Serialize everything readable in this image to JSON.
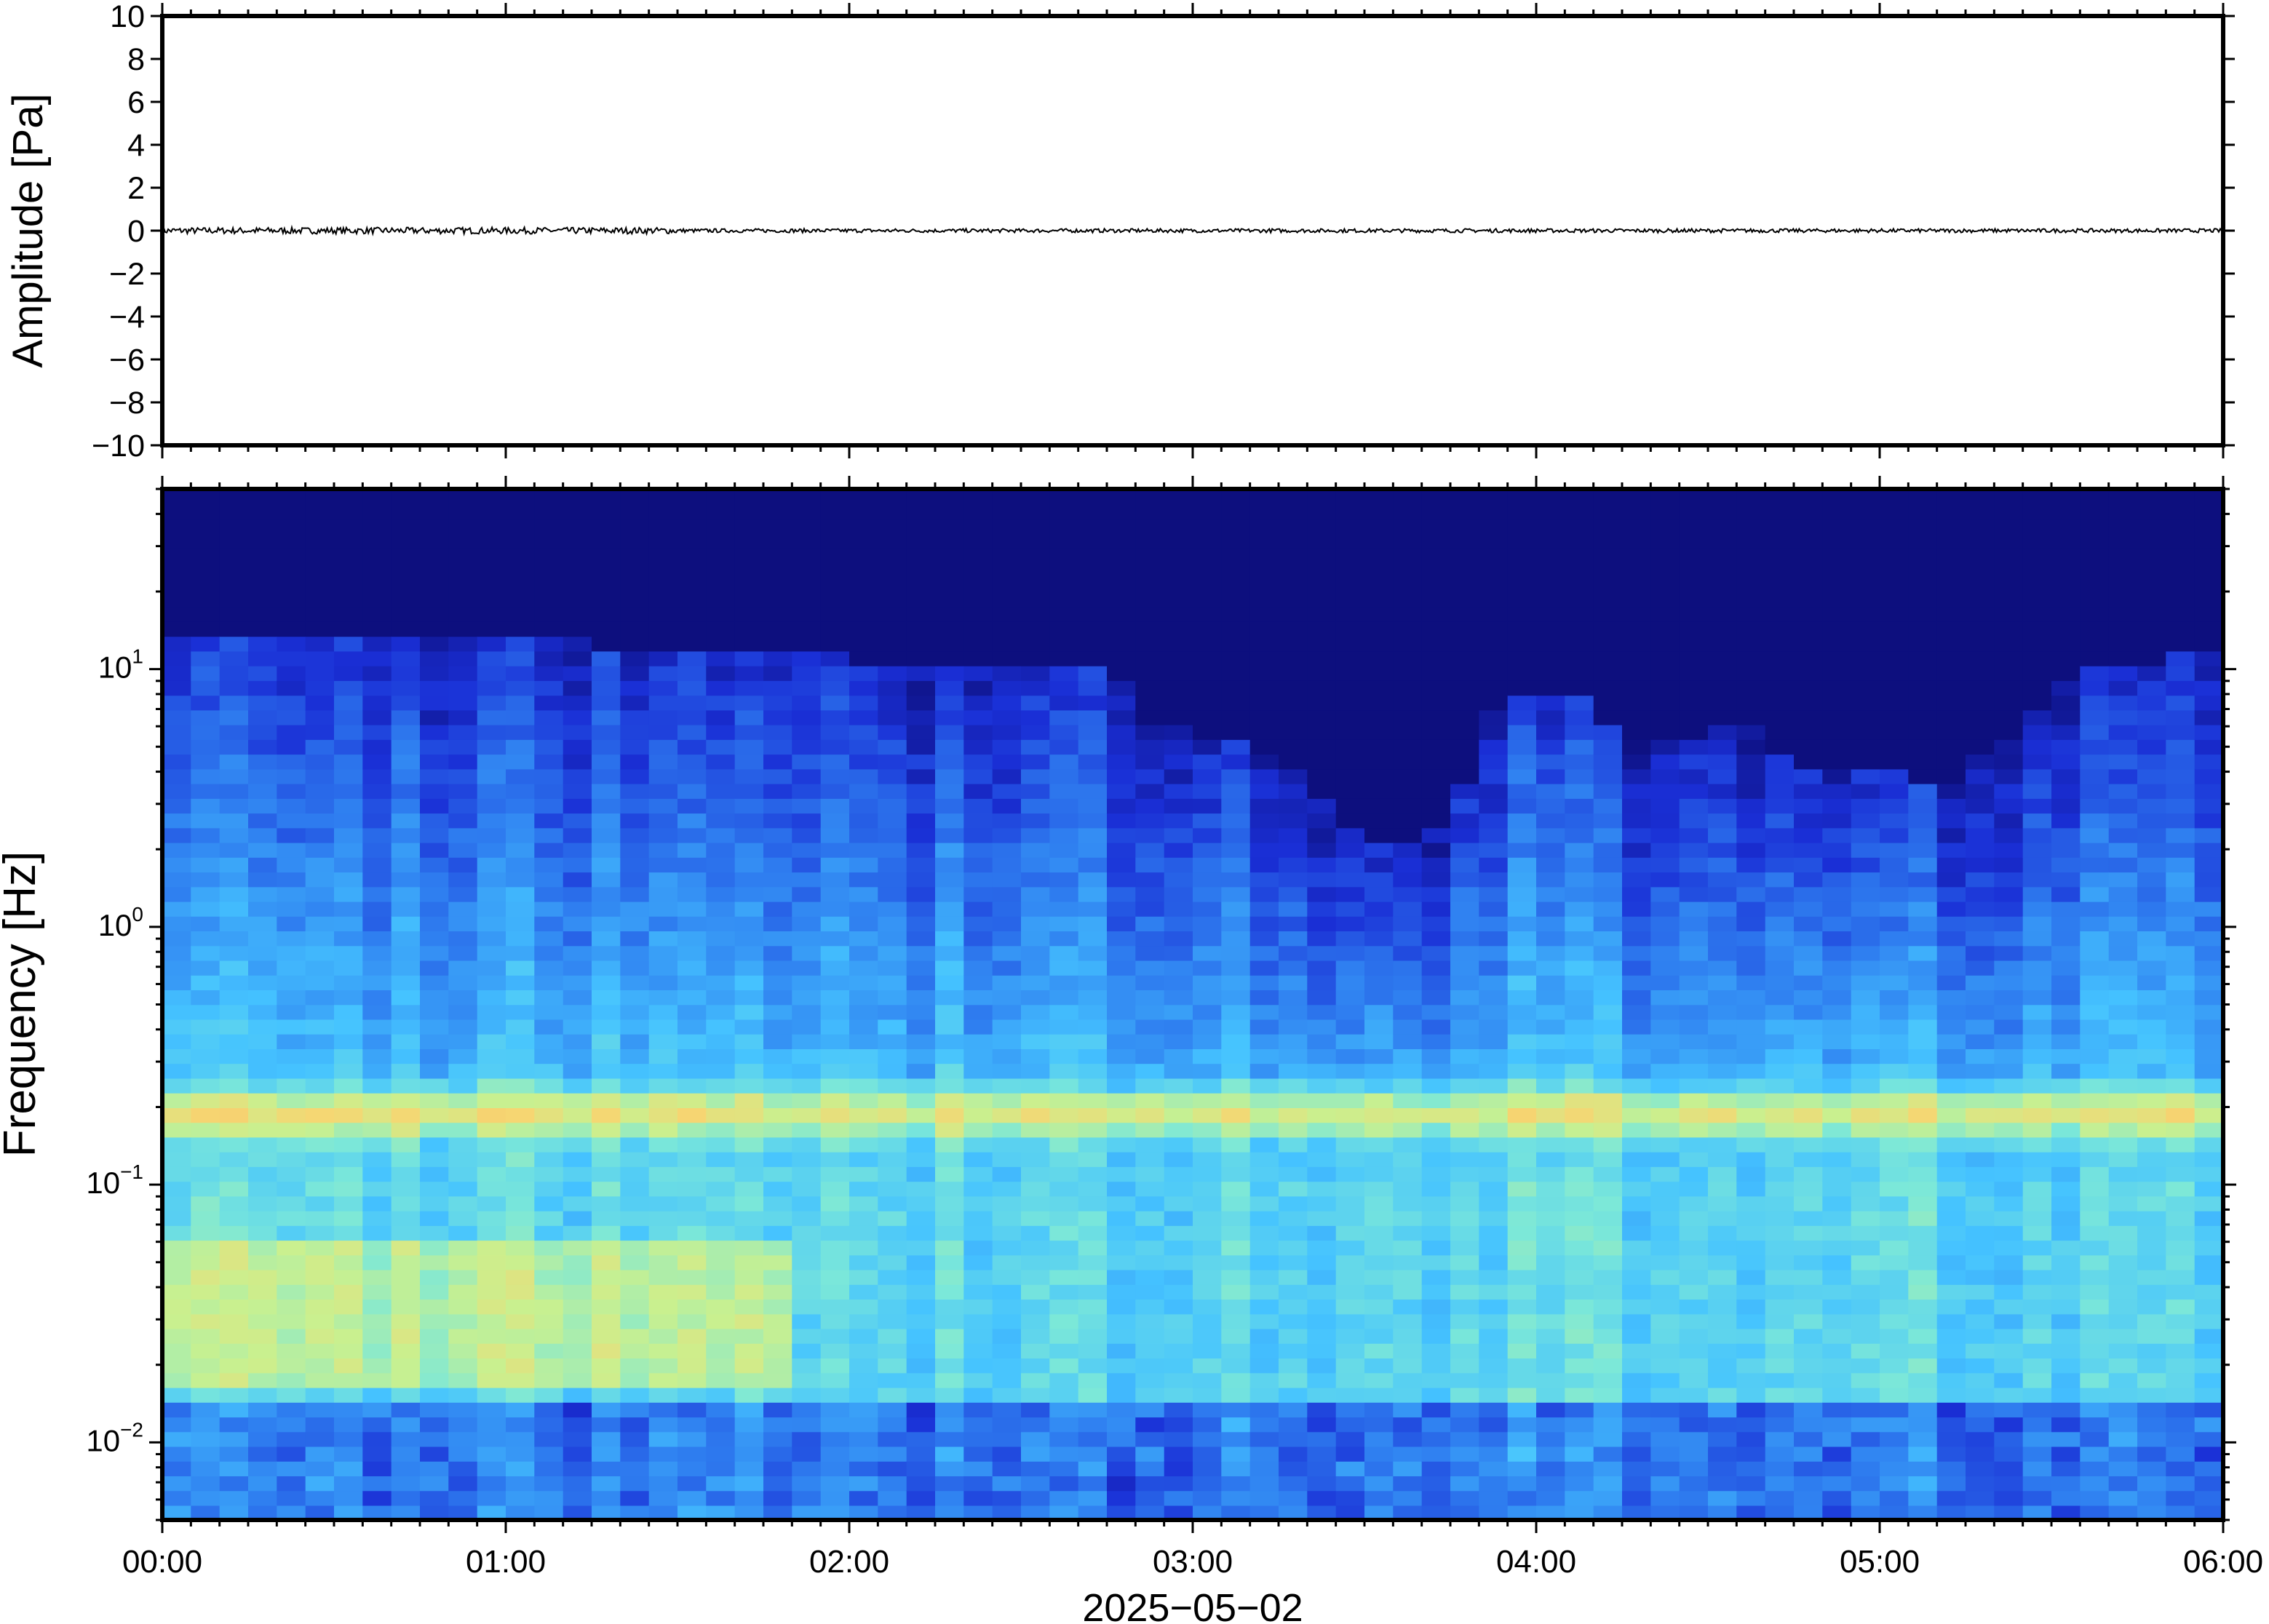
{
  "chart_data": [
    {
      "type": "line",
      "panel": "waveform",
      "ylabel": "Amplitude [Pa]",
      "ylim": [
        -10,
        10
      ],
      "yticks": [
        -10,
        -8,
        -6,
        -4,
        -2,
        0,
        2,
        4,
        6,
        8,
        10
      ],
      "ytick_labels": [
        "−10",
        "−8",
        "−6",
        "−4",
        "−2",
        "0",
        "2",
        "4",
        "6",
        "8",
        "10"
      ],
      "xlim_hours": [
        0,
        6
      ],
      "series_color": "#000000",
      "signal": {
        "mean": 0.0,
        "approx_peak_abs": 0.15
      }
    },
    {
      "type": "heatmap",
      "panel": "spectrogram",
      "ylabel": "Frequency [Hz]",
      "yscale": "log",
      "ylim": [
        0.005,
        50
      ],
      "yticks": [
        0.01,
        0.1,
        1,
        10
      ],
      "ytick_labels": [
        {
          "base": "10",
          "exp": "−2"
        },
        {
          "base": "10",
          "exp": "−1"
        },
        {
          "base": "10",
          "exp": "0"
        },
        {
          "base": "10",
          "exp": "1"
        }
      ],
      "xlabel": "2025−05−02",
      "xlim_hours": [
        0,
        6
      ],
      "xticks_hours": [
        0,
        1,
        2,
        3,
        4,
        5,
        6
      ],
      "xtick_labels": [
        "00:00",
        "01:00",
        "02:00",
        "03:00",
        "04:00",
        "05:00",
        "06:00"
      ],
      "colormap": [
        "#0b0a70",
        "#1a2fd6",
        "#2f7ff0",
        "#45c3ff",
        "#7ce8d8",
        "#c9f08f",
        "#f6d672",
        "#f4a15e"
      ],
      "noise_floor_top_hz_by_hour": [
        [
          0,
          14
        ],
        [
          0.5,
          14
        ],
        [
          1,
          13
        ],
        [
          1.5,
          12
        ],
        [
          2,
          11
        ],
        [
          2.5,
          11
        ],
        [
          2.75,
          11
        ],
        [
          2.85,
          6
        ],
        [
          3,
          6
        ],
        [
          3.3,
          4
        ],
        [
          3.5,
          2
        ],
        [
          3.75,
          2.5
        ],
        [
          3.9,
          8
        ],
        [
          4.1,
          8
        ],
        [
          4.3,
          5
        ],
        [
          4.6,
          6
        ],
        [
          4.8,
          4
        ],
        [
          5,
          4
        ],
        [
          5.2,
          3.5
        ],
        [
          5.4,
          6
        ],
        [
          5.6,
          10
        ],
        [
          6,
          12
        ]
      ],
      "microbarom_band_hz": [
        0.15,
        0.25
      ],
      "microbarom_peak_hz": 0.19
    }
  ]
}
